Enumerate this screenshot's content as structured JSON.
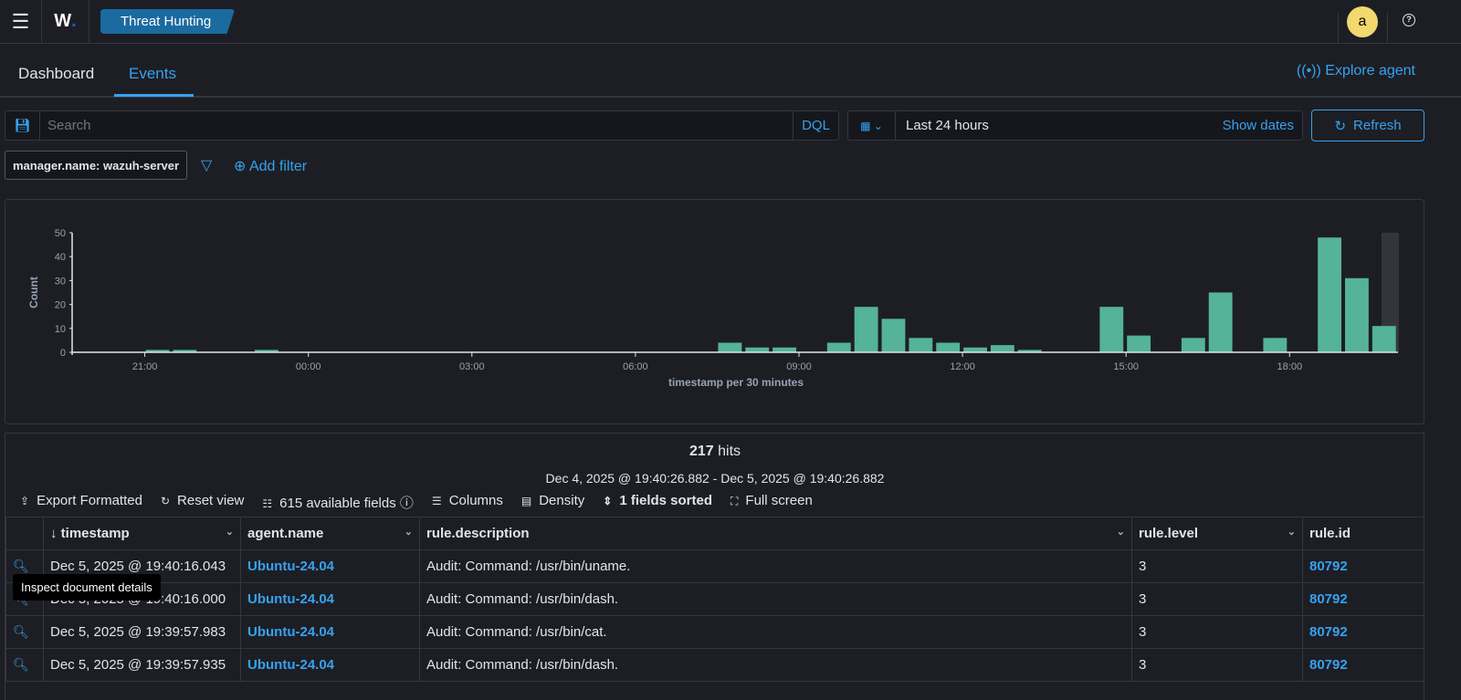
{
  "header": {
    "app_logo": "W",
    "breadcrumb": "Threat Hunting",
    "avatar_letter": "a"
  },
  "tabs": [
    {
      "label": "Dashboard"
    },
    {
      "label": "Events"
    }
  ],
  "explore_agent": "Explore agent",
  "search": {
    "placeholder": "Search",
    "dql": "DQL",
    "time_range": "Last 24 hours",
    "show_dates": "Show dates",
    "refresh": "Refresh"
  },
  "filters": {
    "pill": "manager.name: wazuh-server",
    "add_filter": "Add filter"
  },
  "chart_data": {
    "type": "bar",
    "ylabel": "Count",
    "xlabel": "timestamp per 30 minutes",
    "ylim": [
      0,
      50
    ],
    "yticks": [
      0,
      10,
      20,
      30,
      40,
      50
    ],
    "xticks": [
      "21:00",
      "00:00",
      "03:00",
      "06:00",
      "09:00",
      "12:00",
      "15:00",
      "18:00"
    ],
    "x": [
      "21:00",
      "21:30",
      "23:00",
      "07:30",
      "08:00",
      "08:30",
      "09:30",
      "10:00",
      "10:30",
      "11:00",
      "11:30",
      "12:00",
      "12:30",
      "13:00",
      "14:30",
      "15:00",
      "16:00",
      "16:30",
      "17:30",
      "18:30",
      "19:00",
      "19:30"
    ],
    "values": [
      1,
      1,
      1,
      4,
      2,
      2,
      4,
      19,
      14,
      6,
      4,
      2,
      3,
      1,
      19,
      7,
      6,
      25,
      6,
      48,
      31,
      11
    ],
    "bar_color": "#54b399"
  },
  "results": {
    "hits_count": "217",
    "hits_label": "hits",
    "range": "Dec 4, 2025 @ 19:40:26.882 - Dec 5, 2025 @ 19:40:26.882"
  },
  "toolbar": {
    "export": "Export Formatted",
    "reset": "Reset view",
    "fields": "615 available fields",
    "columns": "Columns",
    "density": "Density",
    "sorted": "1 fields sorted",
    "fullscreen": "Full screen"
  },
  "table": {
    "columns": [
      "timestamp",
      "agent.name",
      "rule.description",
      "rule.level",
      "rule.id"
    ],
    "rows": [
      [
        "Dec 5, 2025 @ 19:40:16.043",
        "Ubuntu-24.04",
        "Audit: Command: /usr/bin/uname.",
        "3",
        "80792"
      ],
      [
        "Dec 5, 2025 @ 19:40:16.000",
        "Ubuntu-24.04",
        "Audit: Command: /usr/bin/dash.",
        "3",
        "80792"
      ],
      [
        "Dec 5, 2025 @ 19:39:57.983",
        "Ubuntu-24.04",
        "Audit: Command: /usr/bin/cat.",
        "3",
        "80792"
      ],
      [
        "Dec 5, 2025 @ 19:39:57.935",
        "Ubuntu-24.04",
        "Audit: Command: /usr/bin/dash.",
        "3",
        "80792"
      ]
    ]
  },
  "tooltip": "Inspect document details"
}
